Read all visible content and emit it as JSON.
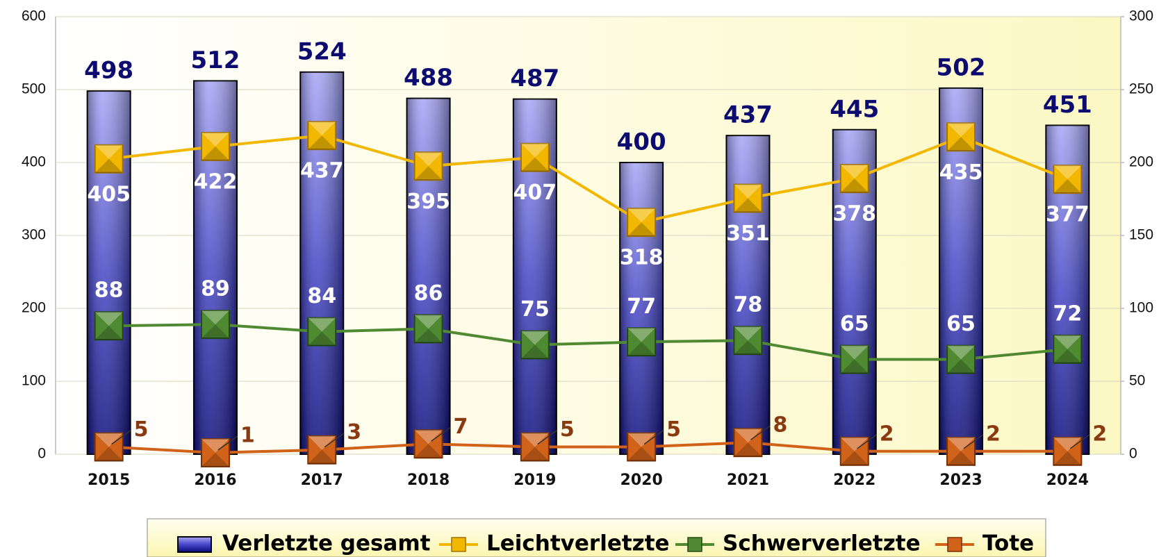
{
  "chart_data": {
    "type": "bar",
    "categories": [
      "2015",
      "2016",
      "2017",
      "2018",
      "2019",
      "2020",
      "2021",
      "2022",
      "2023",
      "2024"
    ],
    "series": [
      {
        "name": "Verletzte gesamt",
        "type": "bar",
        "color": "#4b4bd0",
        "values": [
          498,
          512,
          524,
          488,
          487,
          400,
          437,
          445,
          502,
          451
        ]
      },
      {
        "name": "Leichtverletzte",
        "type": "line",
        "color": "#f2b800",
        "values": [
          405,
          422,
          437,
          395,
          407,
          318,
          351,
          378,
          435,
          377
        ]
      },
      {
        "name": "Schwerverletzte",
        "type": "line",
        "color": "#4f8a32",
        "axis": "y2",
        "values": [
          88,
          89,
          84,
          86,
          75,
          77,
          78,
          65,
          65,
          72
        ]
      },
      {
        "name": "Tote",
        "type": "line",
        "color": "#d0621a",
        "axis": "y2",
        "values": [
          5,
          1,
          3,
          7,
          5,
          5,
          8,
          2,
          2,
          2
        ]
      }
    ],
    "ylim": [
      0,
      600
    ],
    "yticks": [
      0,
      100,
      200,
      300,
      400,
      500,
      600
    ],
    "y2lim": [
      0,
      300
    ],
    "y2ticks": [
      0,
      50,
      100,
      150,
      200,
      250,
      300
    ],
    "grid": true,
    "legend": "bottom"
  }
}
